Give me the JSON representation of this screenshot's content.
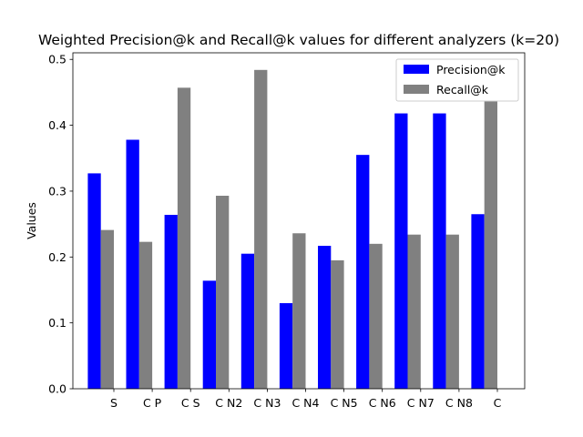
{
  "chart_data": {
    "type": "bar",
    "title": "Weighted Precision@k and Recall@k values for different analyzers (k=20)",
    "xlabel": "",
    "ylabel": "Values",
    "ylim": [
      0,
      0.51
    ],
    "yticks": [
      0.0,
      0.1,
      0.2,
      0.3,
      0.4,
      0.5
    ],
    "ytick_labels": [
      "0.0",
      "0.1",
      "0.2",
      "0.3",
      "0.4",
      "0.5"
    ],
    "categories": [
      "S",
      "C P",
      "C S",
      "C N2",
      "C N3",
      "C N4",
      "C N5",
      "C N6",
      "C N7",
      "C N8",
      "C"
    ],
    "series": [
      {
        "name": "Precision@k",
        "color": "#0000ff",
        "values": [
          0.327,
          0.378,
          0.264,
          0.164,
          0.205,
          0.13,
          0.217,
          0.355,
          0.418,
          0.418,
          0.265
        ]
      },
      {
        "name": "Recall@k",
        "color": "#808080",
        "values": [
          0.241,
          0.223,
          0.457,
          0.293,
          0.484,
          0.236,
          0.195,
          0.22,
          0.234,
          0.234,
          0.437
        ]
      }
    ],
    "grid": false,
    "legend_position": "top-right"
  }
}
